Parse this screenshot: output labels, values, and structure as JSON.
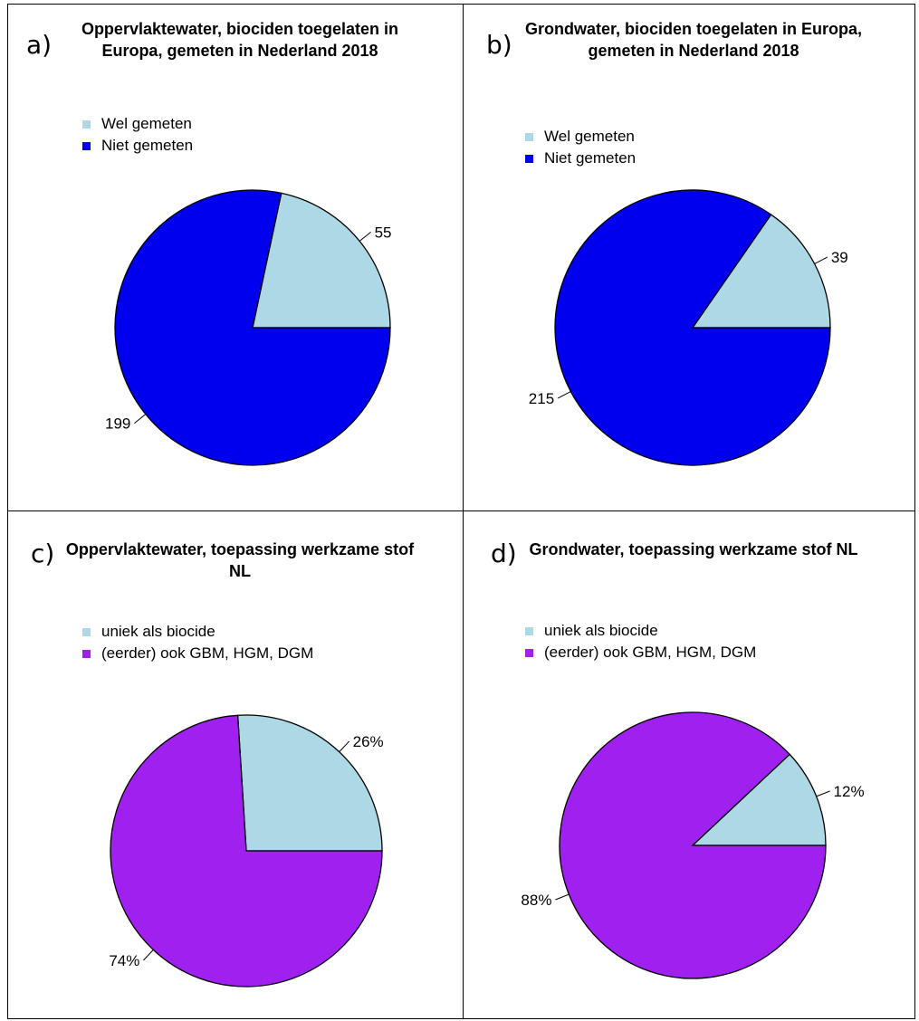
{
  "chart_data": [
    {
      "type": "pie",
      "panel": "a)",
      "title": "Oppervlaktewater, biociden toegelaten in Europa, gemeten in Nederland 2018",
      "legend": [
        "Wel gemeten",
        "Niet gemeten"
      ],
      "labels": [
        "55",
        "199"
      ],
      "values": [
        55,
        199
      ],
      "colors": [
        "#add8e6",
        "#0000ee"
      ]
    },
    {
      "type": "pie",
      "panel": "b)",
      "title": "Grondwater, biociden toegelaten in Europa, gemeten in Nederland 2018",
      "legend": [
        "Wel gemeten",
        "Niet gemeten"
      ],
      "labels": [
        "39",
        "215"
      ],
      "values": [
        39,
        215
      ],
      "colors": [
        "#add8e6",
        "#0000ee"
      ]
    },
    {
      "type": "pie",
      "panel": "c)",
      "title": "Oppervlaktewater, toepassing werkzame stof NL",
      "legend": [
        "uniek als biocide",
        "(eerder) ook GBM, HGM, DGM"
      ],
      "labels": [
        "26%",
        "74%"
      ],
      "values": [
        26,
        74
      ],
      "colors": [
        "#add8e6",
        "#a020f0"
      ]
    },
    {
      "type": "pie",
      "panel": "d)",
      "title": "Grondwater, toepassing werkzame stof NL",
      "legend": [
        "uniek als biocide",
        "(eerder) ook GBM, HGM, DGM"
      ],
      "labels": [
        "12%",
        "88%"
      ],
      "values": [
        12,
        88
      ],
      "colors": [
        "#add8e6",
        "#a020f0"
      ]
    }
  ]
}
